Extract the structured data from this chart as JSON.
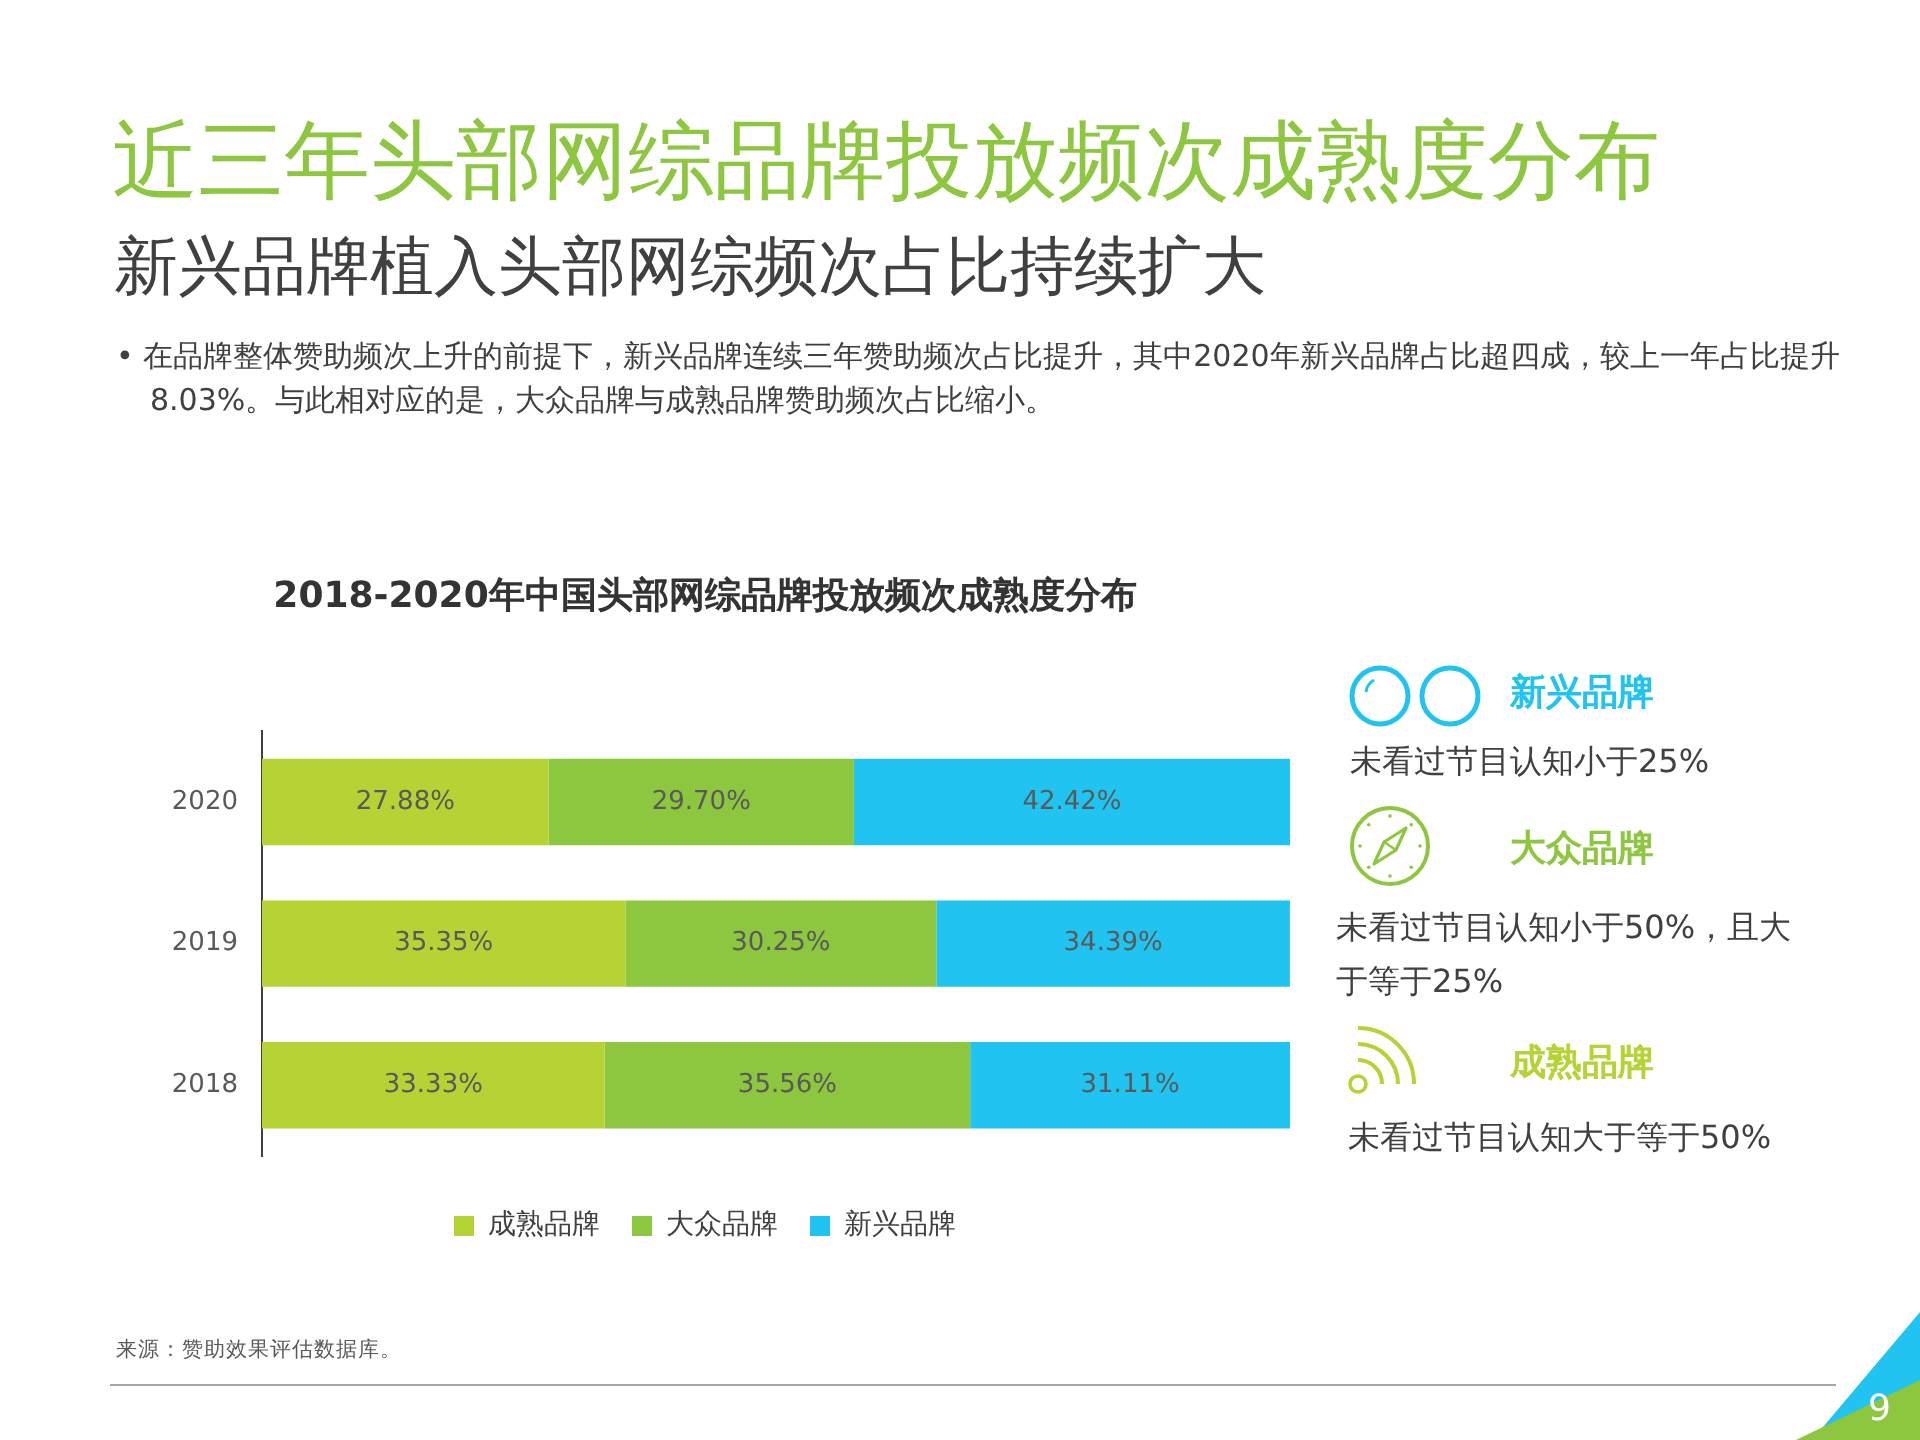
{
  "chart_data": {
    "type": "bar",
    "title": "近三年头部网综品牌投放频次成熟度分布",
    "subtitle": "新兴品牌植入头部网综频次占比持续扩大",
    "orientation": "horizontal",
    "stacked": true,
    "categories": [
      "2020",
      "2019",
      "2018"
    ],
    "series": [
      {
        "name": "成熟品牌",
        "color": "#b5d334",
        "values": [
          27.88,
          35.35,
          33.33
        ],
        "value_labels": [
          "27.88%",
          "35.35%",
          "33.33%"
        ]
      },
      {
        "name": "大众品牌",
        "color": "#8dc63f",
        "values": [
          29.7,
          30.25,
          35.56
        ],
        "value_labels": [
          "29.70%",
          "30.25%",
          "35.56%"
        ]
      },
      {
        "name": "新兴品牌",
        "color": "#21c4f0",
        "values": [
          42.42,
          34.39,
          31.11
        ],
        "value_labels": [
          "42.42%",
          "34.39%",
          "31.11%"
        ]
      }
    ],
    "xlim": [
      0,
      100
    ],
    "tick_labels": "y",
    "grid": false,
    "legend": "bottom",
    "annotations": [
      "• 在品牌整体赞助频次上升的前提下，新兴品牌连续三年赞助频次占比提升，其中2020年新兴品牌占比超四成，较上一年占比提升8.03%。与此相对应的是，大众品牌与成熟品牌赞助频次占比缩小。",
      "2018-2020年中国头部网综品牌投放频次成熟度分布",
      "未看过节目认知小于25%",
      "未看过节目认知小于50%，且大于等于25%",
      "未看过节目认知大于等于50%",
      "来源：赞助效果评估数据库。",
      "9"
    ]
  }
}
